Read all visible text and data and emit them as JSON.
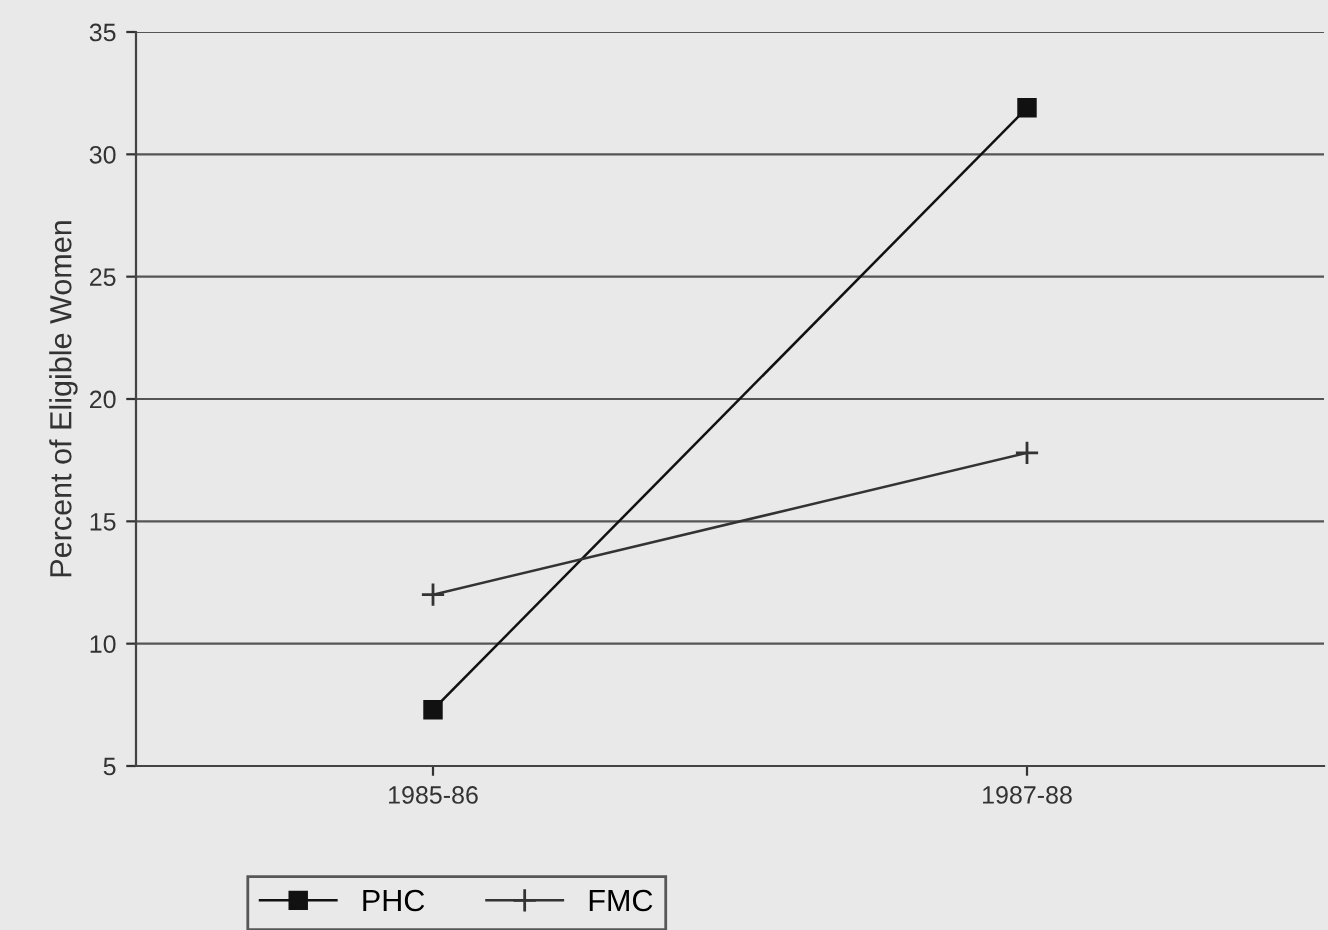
{
  "chart_data": {
    "type": "line",
    "ylabel": "Percent of Eligible Women",
    "categories": [
      "1985-86",
      "1987-88"
    ],
    "series": [
      {
        "name": "PHC",
        "color": "#111111",
        "values": [
          7.3,
          31.9
        ],
        "marker": "square"
      },
      {
        "name": "FMC",
        "color": "#333333",
        "values": [
          12.0,
          17.8
        ],
        "marker": "cross"
      }
    ],
    "ylim": [
      5,
      35
    ],
    "yticks": [
      5,
      10,
      15,
      20,
      25,
      30,
      35
    ],
    "grid": "y",
    "legend": "bottom",
    "line_style": "solid"
  }
}
